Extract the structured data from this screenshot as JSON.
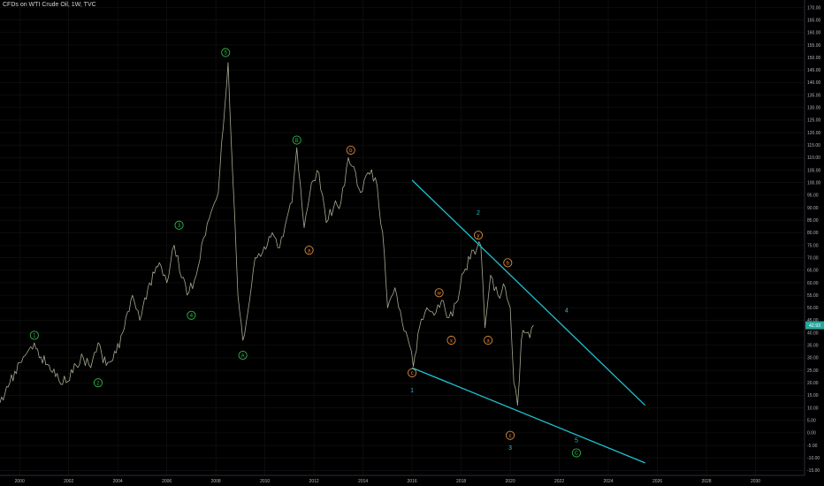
{
  "header": {
    "title": "CFDs on WTI Crude Oil, 1W, TVC"
  },
  "price_badge": {
    "text": "42.93",
    "color": "#26a69a"
  },
  "colors": {
    "background": "#000000",
    "price_line": "#a6a991",
    "trendline": "#1fc2d2",
    "green_label": "#2fb84a",
    "orange_label": "#e08a3c",
    "cyan_label": "#1fc2d2",
    "axis_text": "#b2b5be"
  },
  "chart_data": {
    "type": "line",
    "title": "CFDs on WTI Crude Oil, 1W, TVC",
    "xlabel": "",
    "ylabel": "",
    "xlim": [
      1999.2,
      2032.0
    ],
    "ylim": [
      -17.0,
      173.0
    ],
    "x_ticks": [
      "2000",
      "2002",
      "2004",
      "2006",
      "2008",
      "2010",
      "2012",
      "2014",
      "2016",
      "2018",
      "2020",
      "2022",
      "2024",
      "2026",
      "2028",
      "2030"
    ],
    "x_tick_values": [
      2000,
      2002,
      2004,
      2006,
      2008,
      2010,
      2012,
      2014,
      2016,
      2018,
      2020,
      2022,
      2024,
      2026,
      2028,
      2030
    ],
    "y_ticks": [
      "-15.00",
      "-10.00",
      "-5.00",
      "0.00",
      "5.00",
      "10.00",
      "15.00",
      "20.00",
      "25.00",
      "30.00",
      "35.00",
      "40.00",
      "45.00",
      "50.00",
      "55.00",
      "60.00",
      "65.00",
      "70.00",
      "75.00",
      "80.00",
      "85.00",
      "90.00",
      "95.00",
      "100.00",
      "105.00",
      "110.00",
      "115.00",
      "120.00",
      "125.00",
      "130.00",
      "135.00",
      "140.00",
      "145.00",
      "150.00",
      "155.00",
      "160.00",
      "165.00",
      "170.00"
    ],
    "y_tick_values": [
      -15,
      -10,
      -5,
      0,
      5,
      10,
      15,
      20,
      25,
      30,
      35,
      40,
      45,
      50,
      55,
      60,
      65,
      70,
      75,
      80,
      85,
      90,
      95,
      100,
      105,
      110,
      115,
      120,
      125,
      130,
      135,
      140,
      145,
      150,
      155,
      160,
      165,
      170
    ],
    "series": [
      {
        "x": [
          1999.2,
          1999.6,
          2000.0,
          2000.3,
          2000.6,
          2000.8,
          2001.2,
          2001.6,
          2001.9,
          2002.3,
          2002.6,
          2002.9,
          2003.2,
          2003.4,
          2003.8,
          2004.2,
          2004.6,
          2004.9,
          2005.3,
          2005.7,
          2006.0,
          2006.3,
          2006.6,
          2006.9,
          2007.2,
          2007.5,
          2007.8,
          2008.1,
          2008.3,
          2008.5,
          2008.7,
          2008.9,
          2009.1,
          2009.3,
          2009.6,
          2009.9,
          2010.3,
          2010.6,
          2010.9,
          2011.1,
          2011.3,
          2011.6,
          2011.9,
          2012.2,
          2012.5,
          2012.8,
          2013.1,
          2013.4,
          2013.7,
          2013.9,
          2014.2,
          2014.5,
          2014.8,
          2015.0,
          2015.3,
          2015.6,
          2015.9,
          2016.05,
          2016.3,
          2016.6,
          2016.9,
          2017.2,
          2017.5,
          2017.8,
          2018.1,
          2018.5,
          2018.8,
          2018.97,
          2019.2,
          2019.5,
          2019.8,
          2020.0,
          2020.15,
          2020.3,
          2020.45,
          2020.6,
          2020.8,
          2020.95
        ],
        "values": [
          12,
          20,
          28,
          32,
          36,
          30,
          27,
          21,
          20,
          27,
          30,
          26,
          36,
          28,
          29,
          40,
          55,
          45,
          60,
          68,
          60,
          75,
          62,
          56,
          63,
          78,
          88,
          96,
          122,
          148,
          100,
          55,
          37,
          48,
          70,
          72,
          80,
          74,
          86,
          92,
          114,
          82,
          100,
          104,
          84,
          90,
          92,
          110,
          104,
          96,
          104,
          102,
          80,
          50,
          58,
          44,
          35,
          26.5,
          42,
          50,
          47,
          53,
          46,
          52,
          64,
          73,
          75,
          42,
          63,
          55,
          58,
          50,
          20,
          11,
          37,
          40,
          38,
          43
        ]
      }
    ],
    "trendlines": [
      {
        "x1": 2016.0,
        "y1": 101,
        "x2": 2025.5,
        "y2": 11
      },
      {
        "x1": 2016.0,
        "y1": 26,
        "x2": 2025.5,
        "y2": -12
      }
    ],
    "annotations": [
      {
        "text": "1",
        "x": 2000.6,
        "y": 39,
        "color": "#2fb84a",
        "circle": true
      },
      {
        "text": "2",
        "x": 2003.2,
        "y": 20,
        "color": "#2fb84a",
        "circle": true
      },
      {
        "text": "3",
        "x": 2006.5,
        "y": 83,
        "color": "#2fb84a",
        "circle": true
      },
      {
        "text": "4",
        "x": 2007.0,
        "y": 47,
        "color": "#2fb84a",
        "circle": true
      },
      {
        "text": "5",
        "x": 2008.4,
        "y": 152,
        "color": "#2fb84a",
        "circle": true
      },
      {
        "text": "A",
        "x": 2009.1,
        "y": 31,
        "color": "#2fb84a",
        "circle": true
      },
      {
        "text": "B",
        "x": 2011.3,
        "y": 117,
        "color": "#2fb84a",
        "circle": true
      },
      {
        "text": "b",
        "x": 2013.5,
        "y": 113,
        "color": "#e08a3c",
        "circle": true
      },
      {
        "text": "a",
        "x": 2011.8,
        "y": 73,
        "color": "#e08a3c",
        "circle": true
      },
      {
        "text": "c",
        "x": 2016.0,
        "y": 24,
        "color": "#e08a3c",
        "circle": true
      },
      {
        "text": "w",
        "x": 2017.1,
        "y": 56,
        "color": "#e08a3c",
        "circle": true
      },
      {
        "text": "x",
        "x": 2017.6,
        "y": 37,
        "color": "#e08a3c",
        "circle": true
      },
      {
        "text": "y",
        "x": 2018.7,
        "y": 79,
        "color": "#e08a3c",
        "circle": true
      },
      {
        "text": "a",
        "x": 2019.1,
        "y": 37,
        "color": "#e08a3c",
        "circle": true
      },
      {
        "text": "b",
        "x": 2019.9,
        "y": 68,
        "color": "#e08a3c",
        "circle": true
      },
      {
        "text": "c",
        "x": 2020.0,
        "y": -1,
        "color": "#e08a3c",
        "circle": true
      },
      {
        "text": "C",
        "x": 2022.7,
        "y": -8,
        "color": "#2fb84a",
        "circle": true
      },
      {
        "text": "1",
        "x": 2016.0,
        "y": 17,
        "color": "#1fc2d2",
        "circle": false
      },
      {
        "text": "2",
        "x": 2018.7,
        "y": 88,
        "color": "#1fc2d2",
        "circle": false
      },
      {
        "text": "3",
        "x": 2020.0,
        "y": -6,
        "color": "#1fc2d2",
        "circle": false
      },
      {
        "text": "4",
        "x": 2022.3,
        "y": 49,
        "color": "#1fc2d2",
        "circle": false
      },
      {
        "text": "5",
        "x": 2022.7,
        "y": -3,
        "color": "#1fc2d2",
        "circle": false
      }
    ]
  }
}
